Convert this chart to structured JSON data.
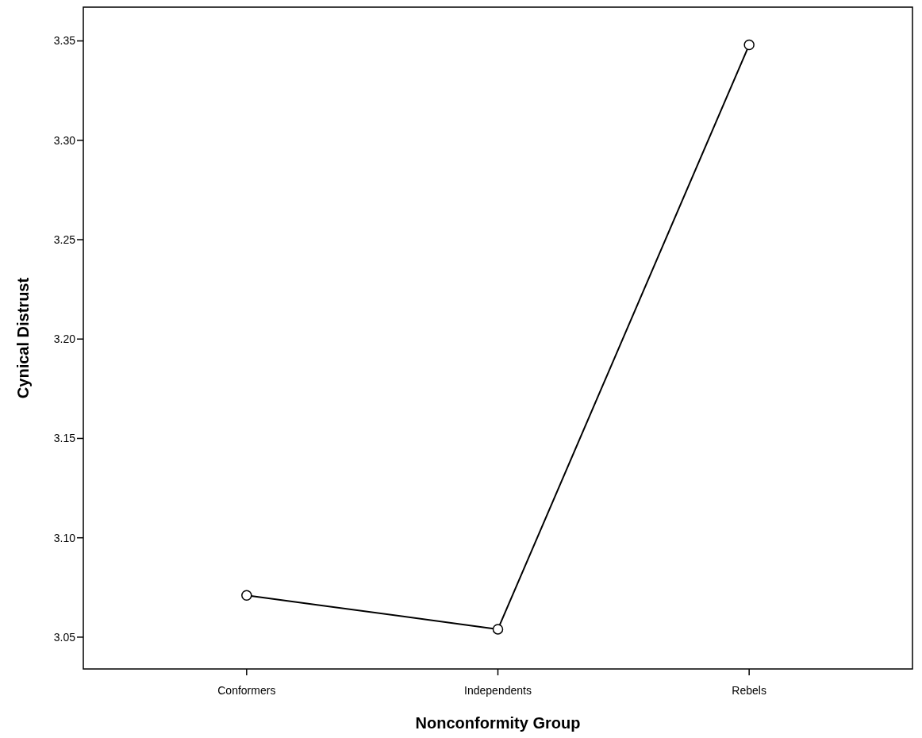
{
  "chart_data": {
    "type": "line",
    "xlabel": "Nonconformity Group",
    "ylabel": "Cynical Distrust",
    "categories": [
      "Conformers",
      "Independents",
      "Rebels"
    ],
    "series": [
      {
        "color": "#000000",
        "values": [
          3.071,
          3.054,
          3.348
        ]
      }
    ],
    "ylim": [
      3.034,
      3.367
    ],
    "yticks": [
      {
        "value": 3.05,
        "label": "3.05"
      },
      {
        "value": 3.1,
        "label": "3.10"
      },
      {
        "value": 3.15,
        "label": "3.15"
      },
      {
        "value": 3.2,
        "label": "3.20"
      },
      {
        "value": 3.25,
        "label": "3.25"
      },
      {
        "value": 3.3,
        "label": "3.30"
      },
      {
        "value": 3.35,
        "label": "3.35"
      }
    ],
    "marker": "circle",
    "line_style": "solid",
    "grid": false
  }
}
